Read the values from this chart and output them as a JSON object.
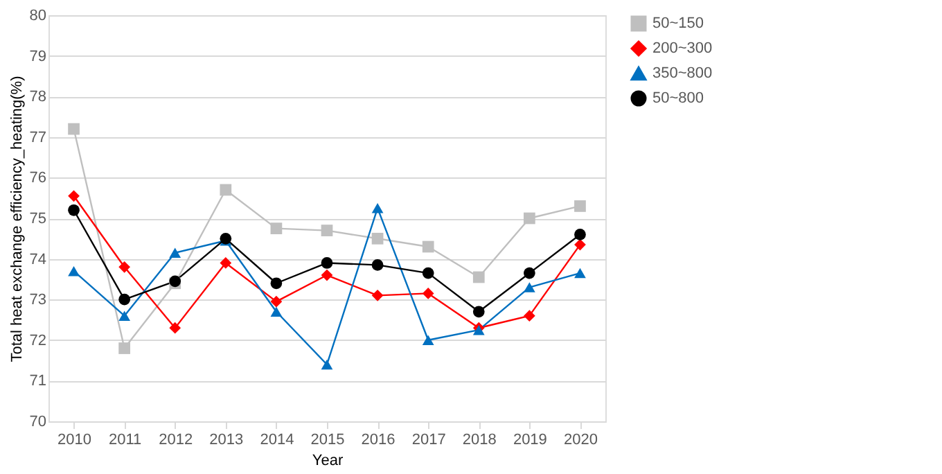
{
  "chart_data": {
    "type": "line",
    "xlabel": "Year",
    "ylabel": "Total heat exchange efficiency_heating(%)",
    "categories": [
      "2010",
      "2011",
      "2012",
      "2013",
      "2014",
      "2015",
      "2016",
      "2017",
      "2018",
      "2019",
      "2020"
    ],
    "ylim": [
      70,
      80
    ],
    "yticks": [
      70,
      71,
      72,
      73,
      74,
      75,
      76,
      77,
      78,
      79,
      80
    ],
    "grid": "y",
    "legend": "right",
    "line_style": "solid",
    "series": [
      {
        "name": "50~150",
        "color": "#bfbfbf",
        "marker": "square",
        "values": [
          77.2,
          71.8,
          73.4,
          75.7,
          74.75,
          74.7,
          74.5,
          74.3,
          73.55,
          75.0,
          75.3
        ]
      },
      {
        "name": "200~300",
        "color": "#ff0000",
        "marker": "diamond",
        "values": [
          75.55,
          73.8,
          72.3,
          73.9,
          72.95,
          73.6,
          73.1,
          73.15,
          72.3,
          72.6,
          74.35
        ]
      },
      {
        "name": "350~800",
        "color": "#0070c0",
        "marker": "triangle",
        "values": [
          73.7,
          72.6,
          74.15,
          74.45,
          72.7,
          71.4,
          75.25,
          72.0,
          72.25,
          73.3,
          73.65
        ]
      },
      {
        "name": "50~800",
        "color": "#000000",
        "marker": "circle",
        "values": [
          75.2,
          73.0,
          73.45,
          74.5,
          73.4,
          73.9,
          73.85,
          73.65,
          72.7,
          73.65,
          74.6
        ]
      }
    ]
  }
}
